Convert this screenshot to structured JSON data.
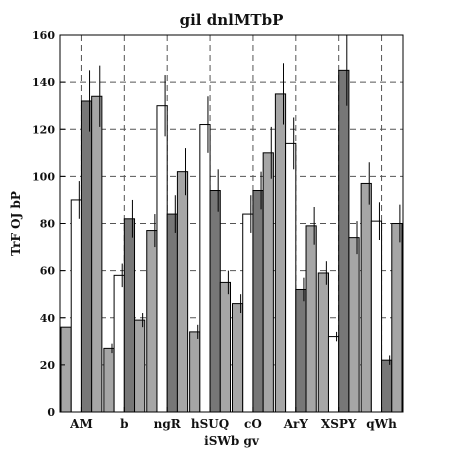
{
  "chart_data": {
    "type": "bar",
    "title": "gil dnlMTbP",
    "xlabel": "iSWb gv",
    "ylabel": "TrF OJ bP",
    "ylim": [
      0,
      160
    ],
    "yticks": [
      0,
      20,
      40,
      60,
      80,
      100,
      120,
      140,
      160
    ],
    "grid": true,
    "categories": [
      "AM",
      "b",
      "ngR",
      "hSUQ",
      "cO",
      "ArY",
      "XSPY",
      "qWh"
    ],
    "series": [
      {
        "color": "#a6a6a6",
        "values": [
          36,
          27,
          77,
          34,
          46,
          135,
          59,
          97
        ],
        "errors": [
          0,
          2,
          7,
          3,
          4,
          13,
          5,
          9
        ]
      },
      {
        "color": "#ffffff",
        "values": [
          90,
          58,
          130,
          122,
          84,
          114,
          32,
          81
        ],
        "errors": [
          8,
          5,
          13,
          12,
          8,
          11,
          2,
          8
        ]
      },
      {
        "color": "#777777",
        "values": [
          132,
          82,
          84,
          94,
          94,
          52,
          145,
          22
        ],
        "errors": [
          13,
          8,
          8,
          9,
          8,
          5,
          15,
          2
        ]
      },
      {
        "color": "#a6a6a6",
        "values": [
          134,
          39,
          102,
          55,
          110,
          79,
          74,
          80
        ],
        "errors": [
          13,
          3,
          10,
          5,
          11,
          8,
          7,
          8
        ]
      }
    ]
  }
}
